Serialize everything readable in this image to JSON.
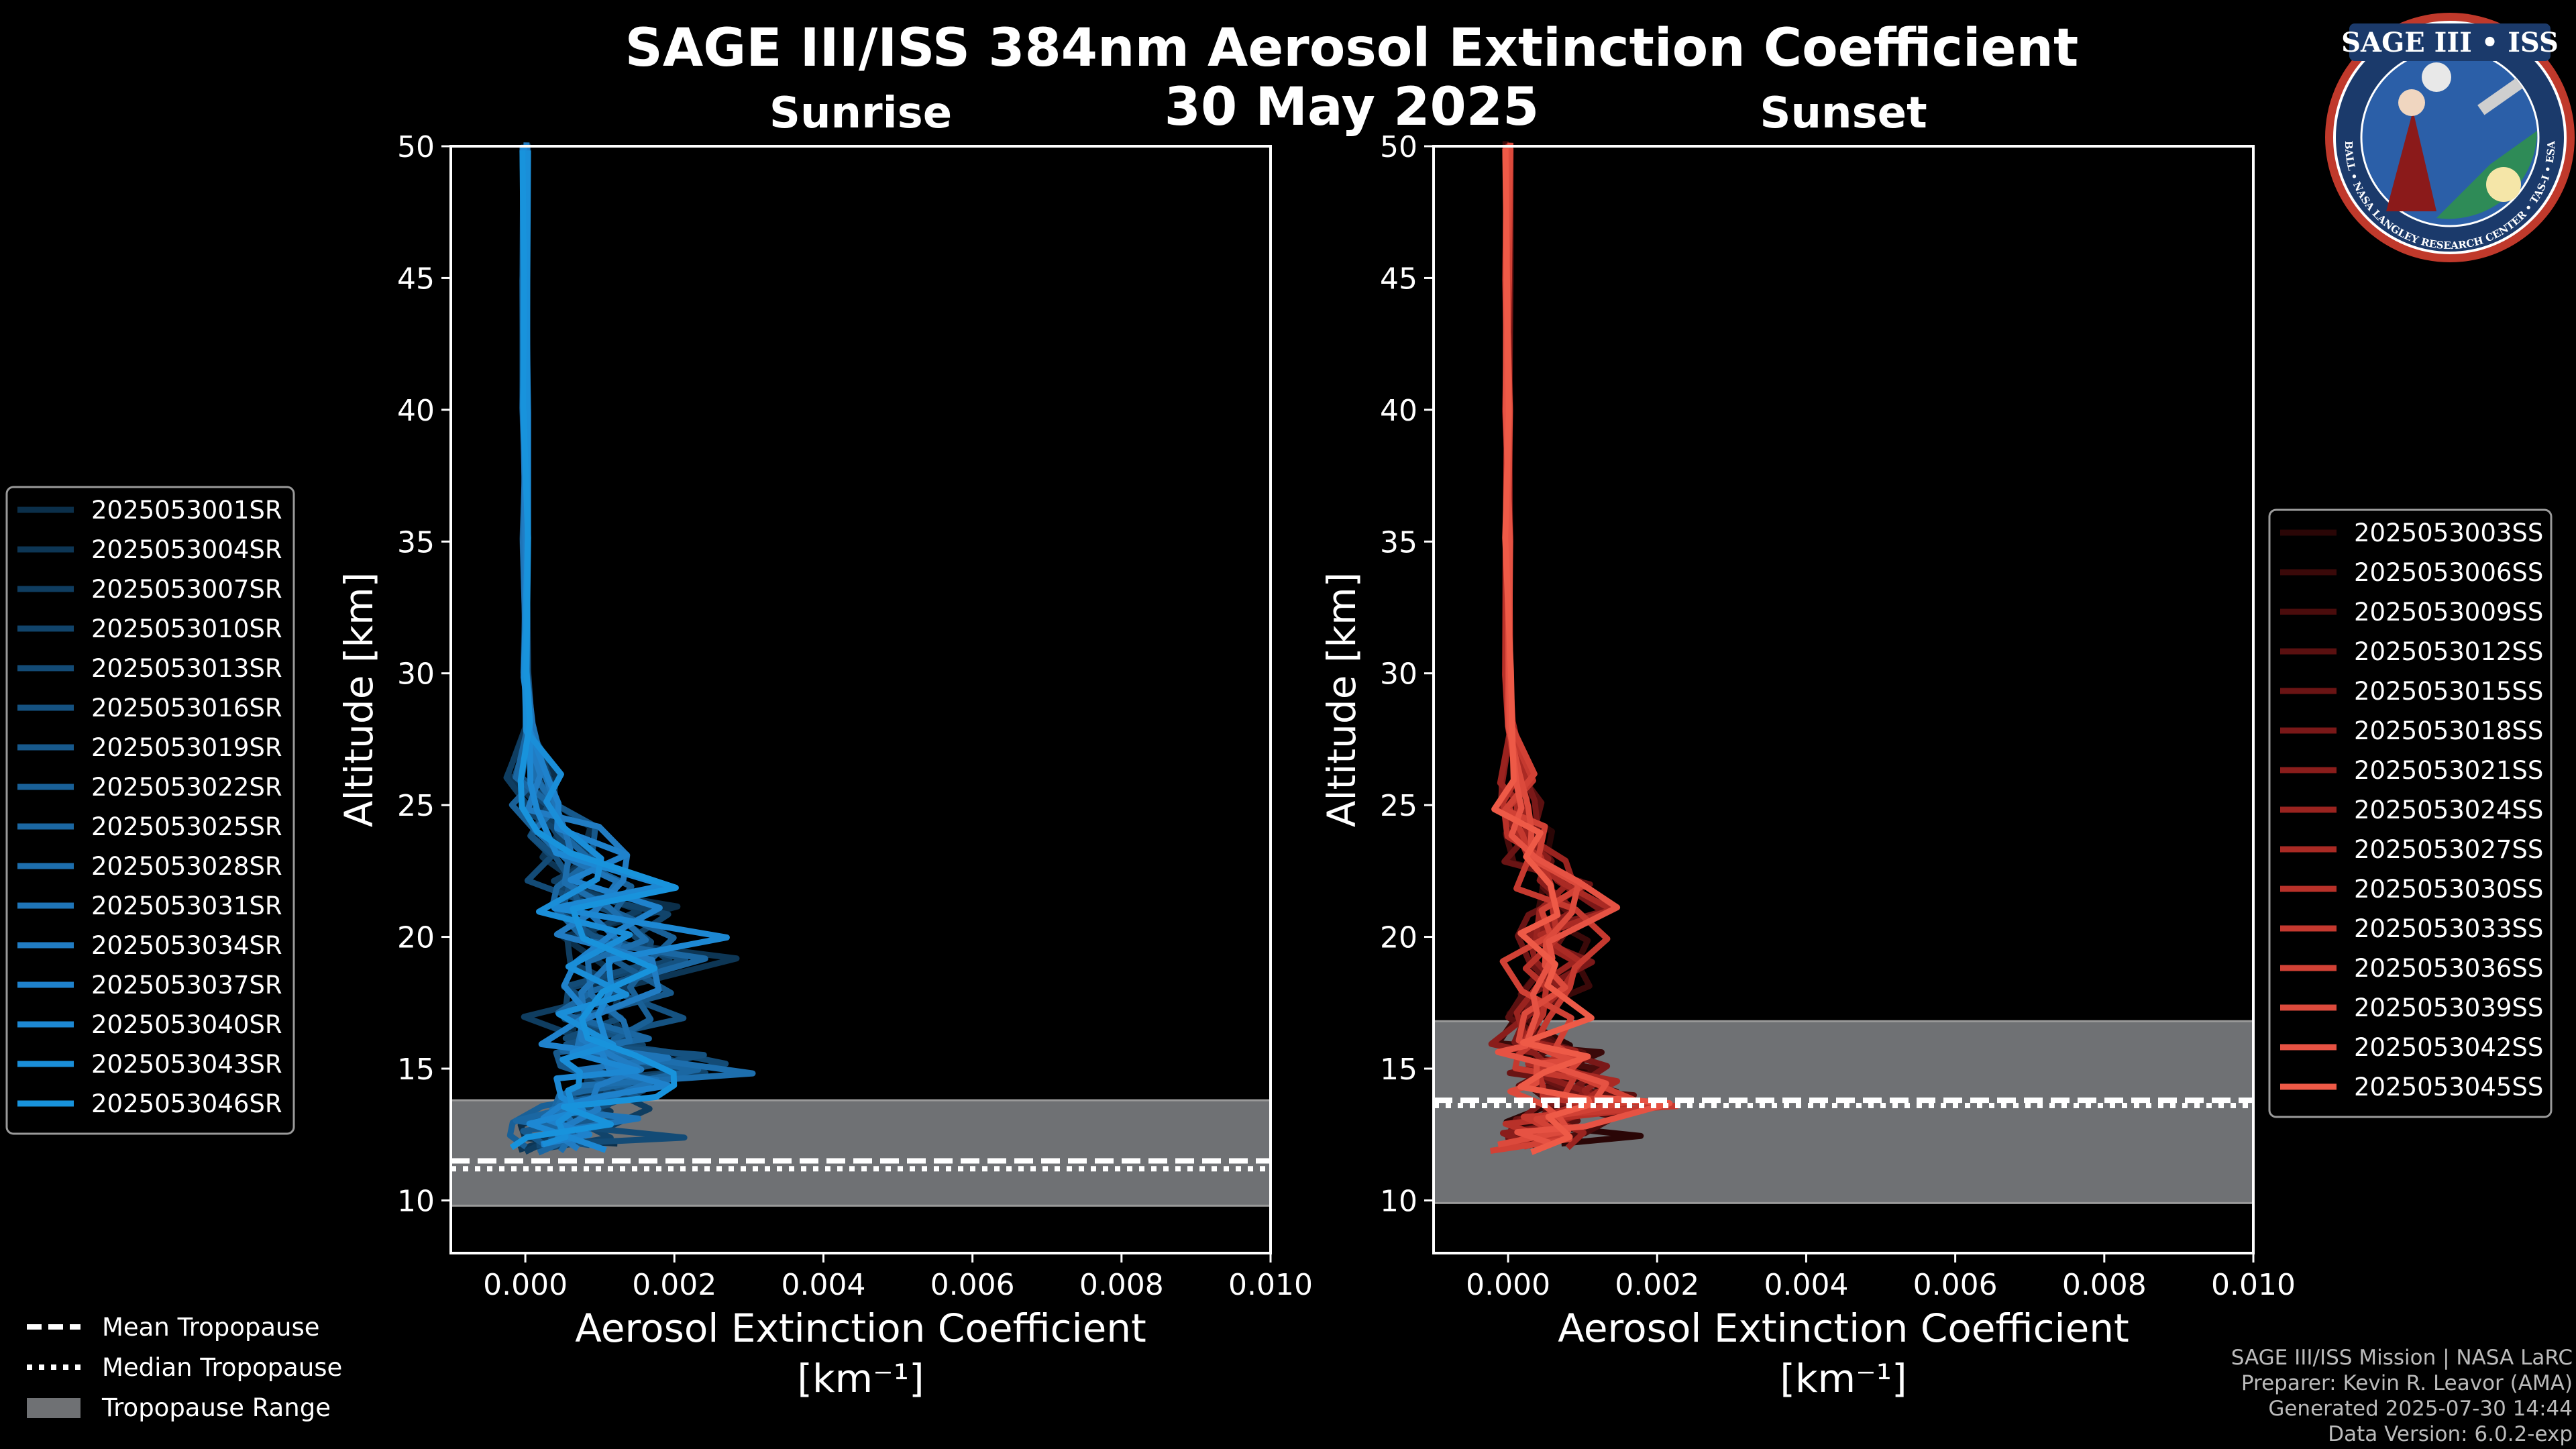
{
  "colors": {
    "sunrise": "#1a8fd6",
    "sunset": "#ee5a47",
    "trop_fill": "#6f7174",
    "background": "#000000",
    "logo_ring": "#1b3a6b",
    "logo_outer": "#c0392b"
  },
  "chart_data": {
    "type": "line",
    "title": "SAGE III/ISS 384nm Aerosol Extinction Coefficient",
    "date": "30 May 2025",
    "panels": [
      {
        "name": "Sunrise",
        "xlabel": "Aerosol Extinction Coefficient",
        "xunit": "[km⁻¹]",
        "ylabel": "Altitude [km]",
        "xlim": [
          -0.001,
          0.01
        ],
        "ylim": [
          8,
          50
        ],
        "xticks": [
          "0.000",
          "0.002",
          "0.004",
          "0.006",
          "0.008",
          "0.010"
        ],
        "xtick_values": [
          0,
          0.002,
          0.004,
          0.006,
          0.008,
          0.01
        ],
        "yticks": [
          "10",
          "15",
          "20",
          "25",
          "30",
          "35",
          "40",
          "45",
          "50"
        ],
        "ytick_values": [
          10,
          15,
          20,
          25,
          30,
          35,
          40,
          45,
          50
        ],
        "tropopause_range": [
          9.8,
          13.8
        ],
        "mean_tropopause": 11.5,
        "median_tropopause": 11.2,
        "series_names": [
          "2025053001SR",
          "2025053004SR",
          "2025053007SR",
          "2025053010SR",
          "2025053013SR",
          "2025053016SR",
          "2025053019SR",
          "2025053022SR",
          "2025053025SR",
          "2025053028SR",
          "2025053031SR",
          "2025053034SR",
          "2025053037SR",
          "2025053040SR",
          "2025053043SR",
          "2025053046SR"
        ],
        "series_colors": [
          "#0b2f4a",
          "#0d3655",
          "#0f3d60",
          "#11446b",
          "#134b76",
          "#155281",
          "#17598c",
          "#196097",
          "#1b67a2",
          "#1d6ead",
          "#1f75b8",
          "#217cc3",
          "#1f82cc",
          "#1d88d3",
          "#1a8ed8",
          "#1893dc"
        ],
        "profile_template": {
          "alt": [
            50,
            45,
            40,
            35,
            30,
            28,
            26,
            25,
            24,
            23,
            22,
            21,
            20,
            19,
            18,
            17,
            16,
            15.5,
            15,
            14.5,
            14,
            13.5,
            13,
            12.5,
            12
          ],
          "ext": [
            0.0,
            0.0,
            0.0,
            0.0,
            0.0,
            5e-05,
            0.0002,
            0.0004,
            0.0008,
            0.0012,
            0.0016,
            0.0019,
            0.002,
            0.0021,
            0.0019,
            0.0017,
            0.0016,
            0.0018,
            0.0022,
            0.0015,
            0.0012,
            0.001,
            0.0008,
            0.0006,
            0.0004
          ]
        }
      },
      {
        "name": "Sunset",
        "xlabel": "Aerosol Extinction Coefficient",
        "xunit": "[km⁻¹]",
        "ylabel": "Altitude [km]",
        "xlim": [
          -0.001,
          0.01
        ],
        "ylim": [
          8,
          50
        ],
        "xticks": [
          "0.000",
          "0.002",
          "0.004",
          "0.006",
          "0.008",
          "0.010"
        ],
        "xtick_values": [
          0,
          0.002,
          0.004,
          0.006,
          0.008,
          0.01
        ],
        "yticks": [
          "10",
          "15",
          "20",
          "25",
          "30",
          "35",
          "40",
          "45",
          "50"
        ],
        "ytick_values": [
          10,
          15,
          20,
          25,
          30,
          35,
          40,
          45,
          50
        ],
        "tropopause_range": [
          9.9,
          16.8
        ],
        "mean_tropopause": 13.8,
        "median_tropopause": 13.6,
        "series_names": [
          "2025053003SS",
          "2025053006SS",
          "2025053009SS",
          "2025053012SS",
          "2025053015SS",
          "2025053018SS",
          "2025053021SS",
          "2025053024SS",
          "2025053027SS",
          "2025053030SS",
          "2025053033SS",
          "2025053036SS",
          "2025053039SS",
          "2025053042SS",
          "2025053045SS"
        ],
        "series_colors": [
          "#2a0606",
          "#3a0909",
          "#4a0c0c",
          "#5a1010",
          "#6a1414",
          "#7a1818",
          "#8a1d1b",
          "#9a231f",
          "#aa2a24",
          "#b83129",
          "#c5392f",
          "#d14135",
          "#dc4a3c",
          "#e65243",
          "#ee5a47"
        ],
        "profile_template": {
          "alt": [
            50,
            45,
            40,
            35,
            30,
            28,
            26,
            25,
            24,
            23,
            22,
            21,
            20,
            19,
            18,
            17,
            16,
            15.5,
            15,
            14.5,
            14,
            13.5,
            13,
            12.5,
            12
          ],
          "ext": [
            0.0,
            0.0,
            0.0,
            0.0,
            0.0,
            3e-05,
            0.0001,
            0.0002,
            0.0004,
            0.0007,
            0.0009,
            0.0011,
            0.001,
            0.0009,
            0.0008,
            0.0007,
            0.0006,
            0.0007,
            0.0009,
            0.0011,
            0.0013,
            0.0015,
            0.001,
            0.0007,
            0.0003
          ]
        }
      }
    ],
    "legend_tropopause": [
      "Mean Tropopause",
      "Median Tropopause",
      "Tropopause Range"
    ]
  },
  "logo": {
    "title": "SAGE III • ISS",
    "ring_text": "BALL • NASA LANGLEY RESEARCH CENTER • TAS-I • ESA"
  },
  "credits": [
    "SAGE III/ISS Mission | NASA LaRC",
    "Preparer: Kevin R. Leavor (AMA)",
    "Generated 2025-07-30 14:44",
    "Data Version: 6.0.2-exp"
  ]
}
